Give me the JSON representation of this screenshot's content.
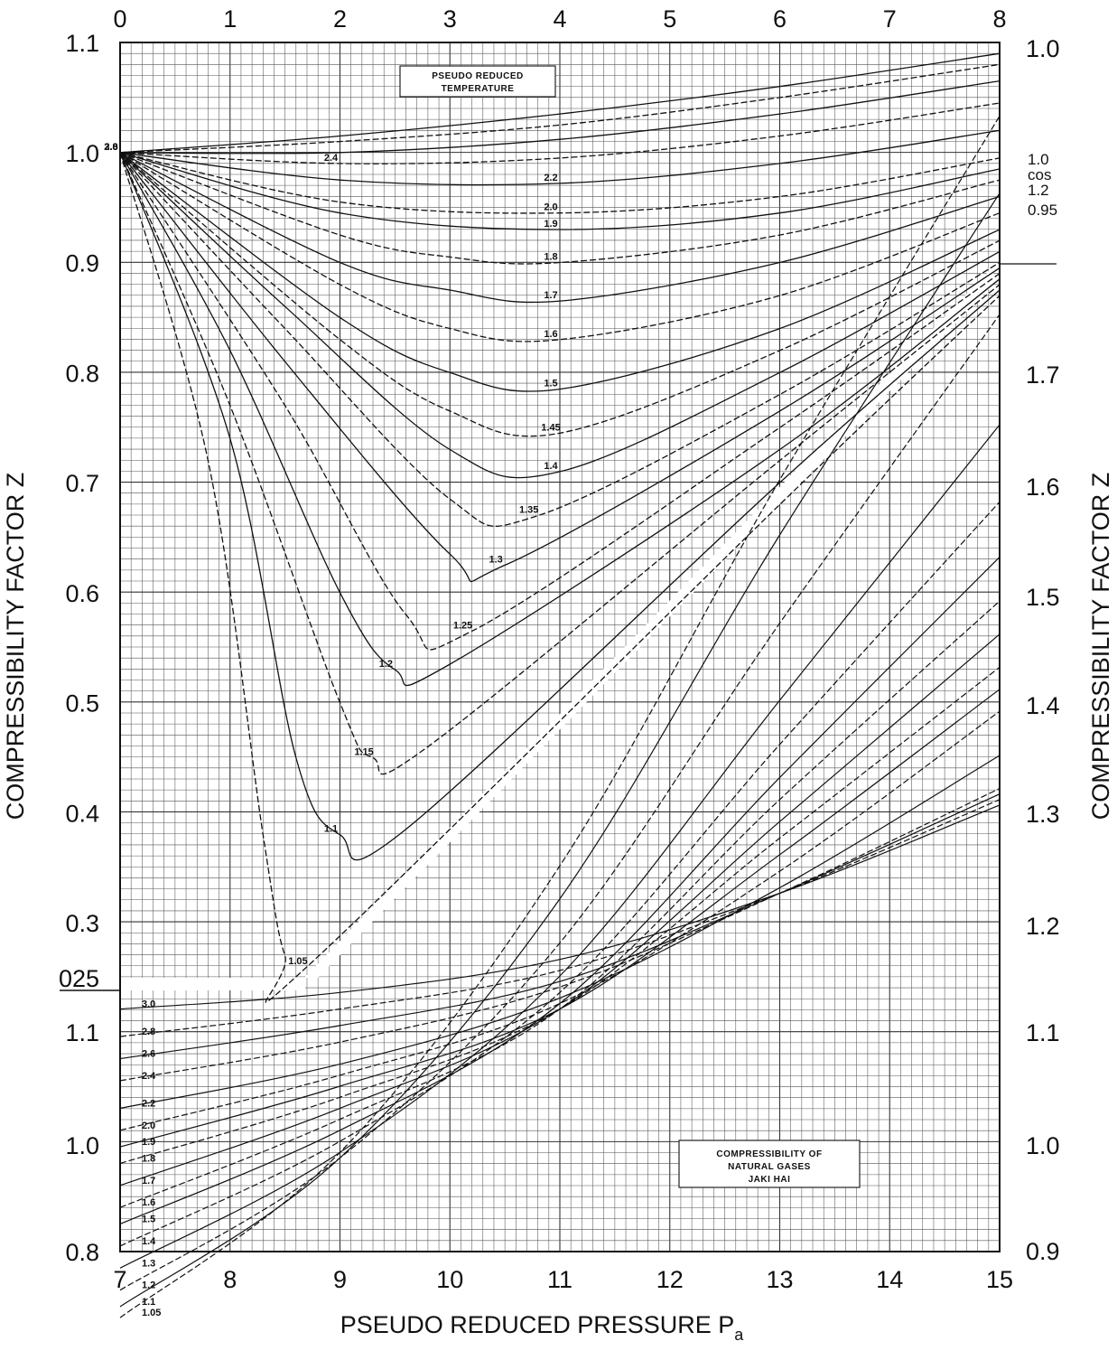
{
  "chart_data": {
    "type": "line",
    "title": "",
    "xlabel": "PSEUDO REDUCED PRESSURE P",
    "xlabel_subscript": "a",
    "ylabel_left": "COMPRESSIBILITY FACTOR Z",
    "ylabel_right": "COMPRESSIBILITY FACTOR Z",
    "top_x_ticks": [
      "0",
      "1",
      "2",
      "3",
      "4",
      "5",
      "6",
      "7",
      "8"
    ],
    "bottom_x_ticks": [
      "7",
      "8",
      "9",
      "10",
      "11",
      "12",
      "13",
      "14",
      "15"
    ],
    "left_y_ticks_upper": [
      "1.1",
      "1.0",
      "0.9",
      "0.8",
      "0.7",
      "0.6",
      "0.5",
      "0.4",
      "0.3",
      "025"
    ],
    "left_y_ticks_lower": [
      "1.1",
      "1.0",
      "0.8"
    ],
    "right_y_ticks": [
      "1.0",
      "1.7",
      "1.6",
      "1.5",
      "1.4",
      "1.3",
      "1.2",
      "1.1",
      "1.0",
      "0.9"
    ],
    "right_edge_labels": [
      "1.0",
      "cos",
      "1.2",
      "0.95"
    ],
    "upper_box_lines": [
      "PSEUDO REDUCED",
      "TEMPERATURE"
    ],
    "lower_box_lines": [
      "COMPRESSIBILITY OF",
      "NATURAL GASES",
      "JAKI HAI"
    ],
    "xlim_top": [
      0,
      8
    ],
    "xlim_bottom": [
      7,
      15
    ],
    "ylim_upper": [
      0.25,
      1.1
    ],
    "grid": true,
    "legend": "none",
    "series_upper": [
      {
        "label": "3.0",
        "x": [
          0,
          2,
          4,
          6,
          8
        ],
        "y": [
          1.0,
          1.015,
          1.035,
          1.06,
          1.09
        ]
      },
      {
        "label": "2.8",
        "x": [
          0,
          2,
          4,
          6,
          8
        ],
        "y": [
          1.0,
          1.01,
          1.025,
          1.05,
          1.08
        ]
      },
      {
        "label": "2.6",
        "x": [
          0,
          2,
          4,
          6,
          8
        ],
        "y": [
          1.0,
          1.0,
          1.012,
          1.035,
          1.065
        ]
      },
      {
        "label": "2.4",
        "x": [
          0,
          2,
          4,
          6,
          8
        ],
        "y": [
          1.0,
          0.99,
          0.995,
          1.015,
          1.045
        ]
      },
      {
        "label": "2.2",
        "x": [
          0,
          2,
          4,
          6,
          8
        ],
        "y": [
          1.0,
          0.975,
          0.972,
          0.99,
          1.02
        ]
      },
      {
        "label": "2.0",
        "x": [
          0,
          2,
          4,
          6,
          8
        ],
        "y": [
          1.0,
          0.955,
          0.945,
          0.96,
          0.995
        ]
      },
      {
        "label": "1.9",
        "x": [
          0,
          2,
          4,
          6,
          8
        ],
        "y": [
          1.0,
          0.945,
          0.93,
          0.945,
          0.985
        ]
      },
      {
        "label": "1.8",
        "x": [
          0,
          2,
          3,
          4,
          6,
          8
        ],
        "y": [
          1.0,
          0.925,
          0.905,
          0.9,
          0.925,
          0.975
        ]
      },
      {
        "label": "1.7",
        "x": [
          0,
          2,
          3,
          4,
          6,
          8
        ],
        "y": [
          1.0,
          0.9,
          0.875,
          0.865,
          0.9,
          0.96
        ]
      },
      {
        "label": "1.6",
        "x": [
          0,
          2,
          3,
          4,
          6,
          8
        ],
        "y": [
          1.0,
          0.88,
          0.84,
          0.83,
          0.87,
          0.945
        ]
      },
      {
        "label": "1.5",
        "x": [
          0,
          2,
          3,
          4,
          6,
          8
        ],
        "y": [
          1.0,
          0.85,
          0.8,
          0.785,
          0.84,
          0.93
        ]
      },
      {
        "label": "1.45",
        "x": [
          0,
          2,
          3,
          4,
          6,
          8
        ],
        "y": [
          1.0,
          0.83,
          0.765,
          0.745,
          0.82,
          0.92
        ]
      },
      {
        "label": "1.4",
        "x": [
          0,
          1.5,
          3,
          4,
          6,
          8
        ],
        "y": [
          1.0,
          0.86,
          0.73,
          0.71,
          0.8,
          0.91
        ]
      },
      {
        "label": "1.35",
        "x": [
          0,
          1.5,
          3,
          3.8,
          6,
          8
        ],
        "y": [
          1.0,
          0.84,
          0.685,
          0.67,
          0.78,
          0.9
        ]
      },
      {
        "label": "1.3",
        "x": [
          0,
          1.5,
          3,
          3.5,
          6,
          8
        ],
        "y": [
          1.0,
          0.81,
          0.635,
          0.625,
          0.765,
          0.895
        ]
      },
      {
        "label": "1.25",
        "x": [
          0,
          1.5,
          2.6,
          3.2,
          6,
          8
        ],
        "y": [
          1.0,
          0.77,
          0.58,
          0.565,
          0.75,
          0.89
        ]
      },
      {
        "label": "1.2",
        "x": [
          0,
          1,
          2,
          2.5,
          3,
          6,
          8
        ],
        "y": [
          1.0,
          0.82,
          0.6,
          0.53,
          0.535,
          0.73,
          0.885
        ]
      },
      {
        "label": "1.15",
        "x": [
          0,
          1,
          2,
          2.3,
          2.8,
          6,
          8
        ],
        "y": [
          1.0,
          0.77,
          0.5,
          0.45,
          0.46,
          0.72,
          0.88
        ]
      },
      {
        "label": "1.1",
        "x": [
          0,
          1,
          1.6,
          2,
          2.6,
          6,
          8
        ],
        "y": [
          1.0,
          0.74,
          0.45,
          0.38,
          0.385,
          0.7,
          0.875
        ]
      },
      {
        "label": "1.05",
        "x": [
          0,
          0.8,
          1.3,
          1.5,
          1.7,
          6,
          8
        ],
        "y": [
          1.0,
          0.72,
          0.38,
          0.27,
          0.26,
          0.68,
          0.87
        ]
      }
    ],
    "series_lower": [
      {
        "label": "3.0",
        "x": [
          7,
          9,
          11,
          13,
          15
        ],
        "y": [
          1.12,
          1.135,
          1.165,
          1.225,
          1.305
        ]
      },
      {
        "label": "2.8",
        "x": [
          7,
          9,
          11,
          13,
          15
        ],
        "y": [
          1.095,
          1.12,
          1.155,
          1.225,
          1.31
        ]
      },
      {
        "label": "2.6",
        "x": [
          7,
          9,
          11,
          13,
          15
        ],
        "y": [
          1.075,
          1.105,
          1.145,
          1.225,
          1.315
        ]
      },
      {
        "label": "2.4",
        "x": [
          7,
          9,
          11,
          13,
          15
        ],
        "y": [
          1.055,
          1.09,
          1.14,
          1.225,
          1.32
        ]
      },
      {
        "label": "2.2",
        "x": [
          7,
          9,
          11,
          13,
          15
        ],
        "y": [
          1.03,
          1.07,
          1.13,
          1.23,
          1.35
        ]
      },
      {
        "label": "2.0",
        "x": [
          7,
          9,
          11,
          13,
          15
        ],
        "y": [
          1.01,
          1.06,
          1.125,
          1.245,
          1.39
        ]
      },
      {
        "label": "1.9",
        "x": [
          7,
          9,
          11,
          13,
          15
        ],
        "y": [
          0.995,
          1.05,
          1.12,
          1.26,
          1.41
        ]
      },
      {
        "label": "1.8",
        "x": [
          7,
          9,
          11,
          13,
          15
        ],
        "y": [
          0.98,
          1.04,
          1.12,
          1.275,
          1.43
        ]
      },
      {
        "label": "1.7",
        "x": [
          7,
          9,
          11,
          13,
          15
        ],
        "y": [
          0.96,
          1.03,
          1.12,
          1.29,
          1.46
        ]
      },
      {
        "label": "1.6",
        "x": [
          7,
          9,
          11,
          13,
          15
        ],
        "y": [
          0.94,
          1.02,
          1.12,
          1.31,
          1.49
        ]
      },
      {
        "label": "1.5",
        "x": [
          7,
          9,
          11,
          13,
          15
        ],
        "y": [
          0.925,
          1.01,
          1.125,
          1.33,
          1.53
        ]
      },
      {
        "label": "1.4",
        "x": [
          7,
          9,
          11,
          13,
          15
        ],
        "y": [
          0.905,
          1.0,
          1.135,
          1.36,
          1.58
        ]
      },
      {
        "label": "1.3",
        "x": [
          7,
          9,
          11,
          13,
          15
        ],
        "y": [
          0.885,
          0.99,
          1.15,
          1.4,
          1.65
        ]
      },
      {
        "label": "1.2",
        "x": [
          7,
          9,
          11,
          13,
          15
        ],
        "y": [
          0.865,
          0.985,
          1.18,
          1.47,
          1.75
        ]
      },
      {
        "label": "1.1",
        "x": [
          7,
          9,
          11,
          13,
          15
        ],
        "y": [
          0.85,
          0.985,
          1.22,
          1.55,
          1.86
        ]
      },
      {
        "label": "1.05",
        "x": [
          7,
          9,
          11,
          13,
          15
        ],
        "y": [
          0.84,
          0.99,
          1.25,
          1.6,
          1.93
        ]
      }
    ]
  }
}
